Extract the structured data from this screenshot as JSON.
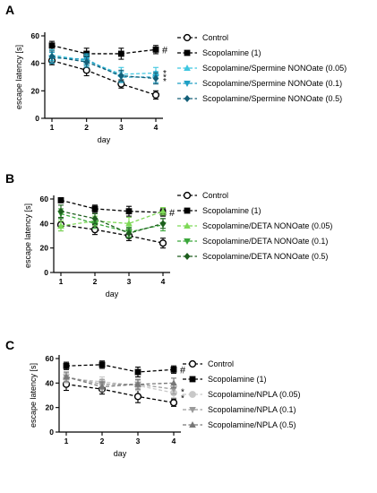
{
  "chart_data": [
    {
      "panel": "A",
      "type": "line",
      "xlabel": "day",
      "ylabel": "escape latency [s]",
      "x": [
        1,
        2,
        3,
        4
      ],
      "xticks": [
        "1",
        "2",
        "3",
        "4"
      ],
      "ylim": [
        0,
        60
      ],
      "yticks": [
        "0",
        "20",
        "40",
        "60"
      ],
      "legend_position": "right",
      "annotations": [
        {
          "text": "#",
          "x": 4,
          "y": 50
        },
        {
          "text": "*",
          "x": 4,
          "y": 34
        },
        {
          "text": "*",
          "x": 4,
          "y": 31
        },
        {
          "text": "*",
          "x": 4,
          "y": 28
        }
      ],
      "series": [
        {
          "name": "Control",
          "marker": "open-circle",
          "color": "#000000",
          "values": [
            42,
            35,
            25,
            17
          ],
          "errors": [
            3,
            4,
            3,
            3
          ]
        },
        {
          "name": "Scopolamine (1)",
          "marker": "square",
          "color": "#000000",
          "values": [
            53,
            47,
            47,
            50
          ],
          "errors": [
            3,
            4,
            4,
            3
          ]
        },
        {
          "name": "Scopolamine/Spermine NONOate (0.05)",
          "marker": "triangle-up",
          "color": "#3ec6e0",
          "values": [
            46,
            42,
            32,
            33
          ],
          "errors": [
            4,
            4,
            5,
            4
          ]
        },
        {
          "name": "Scopolamine/Spermine NONOate (0.1)",
          "marker": "triangle-down",
          "color": "#1f9fc4",
          "values": [
            44,
            43,
            30,
            30
          ],
          "errors": [
            4,
            4,
            4,
            4
          ]
        },
        {
          "name": "Scopolamine/Spermine NONOate (0.5)",
          "marker": "diamond",
          "color": "#145f78",
          "values": [
            45,
            41,
            31,
            29
          ],
          "errors": [
            4,
            4,
            4,
            4
          ]
        }
      ]
    },
    {
      "panel": "B",
      "type": "line",
      "xlabel": "day",
      "ylabel": "escape latency [s]",
      "x": [
        1,
        2,
        3,
        4
      ],
      "xticks": [
        "1",
        "2",
        "3",
        "4"
      ],
      "ylim": [
        0,
        60
      ],
      "yticks": [
        "0",
        "20",
        "40",
        "60"
      ],
      "legend_position": "right",
      "annotations": [
        {
          "text": "#",
          "x": 4,
          "y": 49
        }
      ],
      "series": [
        {
          "name": "Control",
          "marker": "open-circle",
          "color": "#000000",
          "values": [
            39,
            35,
            30,
            24
          ],
          "errors": [
            5,
            4,
            4,
            4
          ]
        },
        {
          "name": "Scopolamine (1)",
          "marker": "square",
          "color": "#000000",
          "values": [
            59,
            52,
            50,
            49
          ],
          "errors": [
            2,
            3,
            4,
            3
          ]
        },
        {
          "name": "Scopolamine/DETA NONOate (0.05)",
          "marker": "triangle-up",
          "color": "#7ed957",
          "values": [
            38,
            42,
            40,
            50
          ],
          "errors": [
            4,
            4,
            5,
            3
          ]
        },
        {
          "name": "Scopolamine/DETA NONOate (0.1)",
          "marker": "triangle-down",
          "color": "#3aa63a",
          "values": [
            48,
            40,
            33,
            39
          ],
          "errors": [
            4,
            4,
            4,
            5
          ]
        },
        {
          "name": "Scopolamine/DETA NONOate (0.5)",
          "marker": "diamond",
          "color": "#1e5e1e",
          "values": [
            50,
            44,
            32,
            40
          ],
          "errors": [
            5,
            4,
            4,
            4
          ]
        }
      ]
    },
    {
      "panel": "C",
      "type": "line",
      "xlabel": "day",
      "ylabel": "escape latency [s]",
      "x": [
        1,
        2,
        3,
        4
      ],
      "xticks": [
        "1",
        "2",
        "3",
        "4"
      ],
      "ylim": [
        0,
        60
      ],
      "yticks": [
        "0",
        "20",
        "40",
        "60"
      ],
      "legend_position": "right",
      "annotations": [
        {
          "text": "#",
          "x": 4,
          "y": 51
        },
        {
          "text": "*",
          "x": 4,
          "y": 34
        },
        {
          "text": "*",
          "x": 4,
          "y": 29
        }
      ],
      "series": [
        {
          "name": "Control",
          "marker": "open-circle",
          "color": "#000000",
          "values": [
            39,
            35,
            29,
            24
          ],
          "errors": [
            5,
            4,
            5,
            3
          ]
        },
        {
          "name": "Scopolamine (1)",
          "marker": "square",
          "color": "#000000",
          "values": [
            54,
            55,
            49,
            51
          ],
          "errors": [
            3,
            3,
            4,
            3
          ]
        },
        {
          "name": "Scopolamine/NPLA (0.05)",
          "marker": "circle",
          "color": "#c8c8c8",
          "values": [
            44,
            41,
            38,
            32
          ],
          "errors": [
            4,
            4,
            4,
            4
          ]
        },
        {
          "name": "Scopolamine/NPLA (0.1)",
          "marker": "triangle-down",
          "color": "#9a9a9a",
          "values": [
            45,
            39,
            39,
            35
          ],
          "errors": [
            4,
            4,
            4,
            4
          ]
        },
        {
          "name": "Scopolamine/NPLA (0.5)",
          "marker": "triangle-up",
          "color": "#777777",
          "values": [
            45,
            37,
            39,
            40
          ],
          "errors": [
            4,
            4,
            4,
            4
          ]
        }
      ]
    }
  ]
}
